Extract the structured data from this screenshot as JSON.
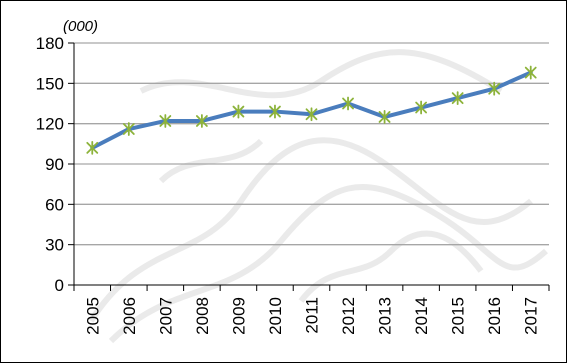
{
  "chart_data": {
    "type": "line",
    "title": "",
    "unit_label": "(000)",
    "xlabel": "",
    "ylabel": "",
    "x": [
      "2005",
      "2006",
      "2007",
      "2008",
      "2009",
      "2010",
      "2011",
      "2012",
      "2013",
      "2014",
      "2015",
      "2016",
      "2017"
    ],
    "series": [
      {
        "values": [
          102,
          116,
          122,
          122,
          129,
          129,
          127,
          135,
          125,
          132,
          139,
          146,
          158
        ]
      }
    ],
    "ylim": [
      0,
      180
    ],
    "yticks": [
      0,
      30,
      60,
      90,
      120,
      150,
      180
    ],
    "grid": true,
    "legend": "none",
    "colors": {
      "line": "#4a7dbd",
      "marker": "#8db33b",
      "grid": "#a6a6a6",
      "axis": "#000000"
    }
  }
}
